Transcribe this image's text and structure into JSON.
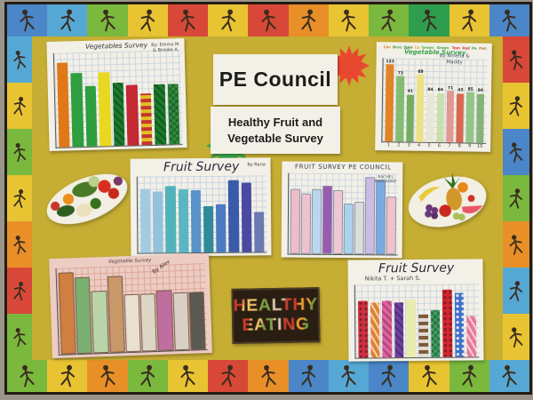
{
  "board": {
    "background_color": "#c6ad33",
    "frame_color": "#241c12",
    "wall_color": "#9a958a",
    "border_theme": "sports-athletes",
    "border_panel_colors": {
      "top": [
        "#4a86c8",
        "#56a8d4",
        "#7ab83e",
        "#e8c432",
        "#d84838",
        "#e8c432",
        "#d84838",
        "#e88f28",
        "#e8c432",
        "#7ab83e",
        "#2e9e4e",
        "#e8c432",
        "#4a86c8"
      ],
      "bottom": [
        "#7ab83e",
        "#e8c432",
        "#e88f28",
        "#7ab83e",
        "#e8c432",
        "#d84838",
        "#e88f28",
        "#4a86c8",
        "#56a8d4",
        "#4a86c8",
        "#e8c432",
        "#7ab83e",
        "#56a8d4"
      ],
      "left": [
        "#56a8d4",
        "#e8c432",
        "#7ab83e",
        "#e8c432",
        "#e88f28",
        "#d84838",
        "#7ab83e"
      ],
      "right": [
        "#d84838",
        "#e8c432",
        "#4a86c8",
        "#7ab83e",
        "#e88f28",
        "#56a8d4",
        "#e8c432"
      ]
    }
  },
  "signs": {
    "main_title": "PE Council",
    "subtitle_line1": "Healthy Fruit and",
    "subtitle_line2": "Vegetable Survey",
    "healthy_line1": "HEALTHY",
    "healthy_line2": "EATING",
    "starburst_red": "#e84830",
    "starburst_green": "#3aa84a"
  },
  "images": {
    "left_cutout": "vegetable-platter-photo",
    "right_cutout": "fruit-platter-photo"
  },
  "chart_data": [
    {
      "id": "vegetables-survey-top-left",
      "type": "bar",
      "title": "Vegetables Survey",
      "author": "By: Emma M. & Brooke A.",
      "ylim": [
        0,
        10
      ],
      "values": [
        9,
        8,
        7,
        8,
        7,
        7,
        6,
        7,
        7
      ],
      "heights": [
        0.92,
        0.8,
        0.66,
        0.8,
        0.68,
        0.66,
        0.56,
        0.66,
        0.66
      ],
      "colors": [
        "#e07818",
        "#2f9e3f",
        "#2f9e3f",
        "#e8d820",
        "#1c7a2c",
        "#c42832",
        "#e0c020",
        "#1c7a2c",
        "#2f8e3e"
      ],
      "patterns": [
        "solid",
        "solid",
        "solid",
        "solid",
        "hatch",
        "solid",
        "check-red",
        "hatch",
        "cross"
      ]
    },
    {
      "id": "vegetable-survey-top-right",
      "type": "bar",
      "title": "Vegetable Survey",
      "title_color": "#3aa04a",
      "author": "By Amelia & Maddy",
      "ylim": [
        0,
        130
      ],
      "values": [
        123,
        73,
        41,
        88,
        84,
        84,
        71,
        43,
        85,
        84
      ],
      "value_labels": [
        "123",
        "73",
        "41",
        "88",
        "84",
        "84",
        "71",
        "43",
        "85",
        "84"
      ],
      "x_labels": [
        "1",
        "2",
        "3",
        "4",
        "5",
        "6",
        "7",
        "8",
        "9",
        "10"
      ],
      "legend": [
        "Carrot",
        "Broccoli",
        "Spinach",
        "Corn",
        "Green Bean",
        "Green Bean",
        "Tomato",
        "Radish",
        "Peas",
        "Potato"
      ],
      "legend_colors": [
        "#d87820",
        "#3a9e3a",
        "#217a21",
        "#d8b418",
        "#4aa84a",
        "#3a9e3a",
        "#d83028",
        "#c23848",
        "#3aa84a",
        "#a87838"
      ],
      "heights": [
        0.95,
        0.8,
        0.58,
        0.82,
        0.6,
        0.6,
        0.63,
        0.6,
        0.62,
        0.6
      ],
      "colors": [
        "#e08428",
        "#84bc74",
        "#74ac64",
        "#ece284",
        "#e8e6d8",
        "#cadfac",
        "#e09890",
        "#d86850",
        "#94c488",
        "#84b478"
      ],
      "patterns": [
        "solid",
        "solid",
        "solid",
        "solid",
        "solid",
        "solid",
        "solid",
        "solid",
        "solid",
        "solid"
      ]
    },
    {
      "id": "fruit-survey-rena",
      "type": "bar",
      "title": "Fruit Survey",
      "author": "By Rena",
      "ylim": [
        0,
        10
      ],
      "values": [
        8.5,
        8,
        9,
        8.5,
        8,
        6,
        6.5,
        9.5,
        9,
        5.5
      ],
      "heights": [
        0.86,
        0.83,
        0.9,
        0.85,
        0.84,
        0.62,
        0.65,
        0.97,
        0.93,
        0.54
      ],
      "colors": [
        "#a2cbe2",
        "#92c2dc",
        "#52b2ba",
        "#5ab6c2",
        "#5a92ca",
        "#2f8a9a",
        "#4a7ac2",
        "#3a5aaa",
        "#4a4aa2",
        "#6a7ab2"
      ],
      "patterns": [
        "solid",
        "solid",
        "solid",
        "solid",
        "solid",
        "solid",
        "solid",
        "solid",
        "solid",
        "solid"
      ],
      "grid_color": "#c7d5e2"
    },
    {
      "id": "fruit-survey-pe-council",
      "type": "bar",
      "title": "FRUIT SURVEY PE COUNCIL",
      "author": "RACHEL MARIANNE",
      "ylim": [
        0,
        10
      ],
      "values": [
        8,
        7.5,
        8,
        8.5,
        8,
        6,
        6.5,
        9.5,
        9,
        7
      ],
      "heights": [
        0.8,
        0.74,
        0.8,
        0.84,
        0.78,
        0.62,
        0.64,
        0.95,
        0.92,
        0.7
      ],
      "colors": [
        "#f0bcca",
        "#eec2ce",
        "#bcd6ee",
        "#9a5ab2",
        "#f0c6d2",
        "#aad2ea",
        "#dcdcdc",
        "#cabce2",
        "#7aaae2",
        "#f0c2ce"
      ],
      "patterns": [
        "solid",
        "solid",
        "solid",
        "solid",
        "solid",
        "solid",
        "solid",
        "solid",
        "solid",
        "solid"
      ],
      "bar_border": "#8a94a4",
      "grid_color": "#cfd8e0"
    },
    {
      "id": "vegetable-survey-alex",
      "type": "bar",
      "title": "Vegetable Survey",
      "author": "By Alex",
      "ylim": [
        0,
        10
      ],
      "values": [
        9.5,
        9,
        7,
        9,
        6.5,
        6.5,
        7,
        6.5,
        6.5
      ],
      "heights": [
        0.95,
        0.88,
        0.72,
        0.88,
        0.66,
        0.66,
        0.7,
        0.66,
        0.66
      ],
      "colors": [
        "#cf7f3f",
        "#7ab070",
        "#b8d4a8",
        "#c89868",
        "#e8e0d0",
        "#ddd6c5",
        "#bf6f9f",
        "#d8d0c6",
        "#5a5a52"
      ],
      "patterns": [
        "solid",
        "solid",
        "solid",
        "solid",
        "solid",
        "solid",
        "solid",
        "solid",
        "solid"
      ],
      "paper_color": "#edccc3",
      "grid_color": "#dba79b",
      "bar_border": "#7a5a4a"
    },
    {
      "id": "fruit-survey-bottom-right",
      "type": "bar",
      "title": "Fruit Survey",
      "author": "Nikita T. + Sarah S.",
      "ylim": [
        0,
        10
      ],
      "values": [
        8,
        8,
        8,
        8,
        8,
        6,
        6.5,
        9.5,
        9,
        6
      ],
      "heights": [
        0.8,
        0.78,
        0.8,
        0.78,
        0.82,
        0.62,
        0.66,
        0.95,
        0.9,
        0.58
      ],
      "colors": [
        "#cc3040",
        "#e08030",
        "#e060a0",
        "#7040a0",
        "#e8ecb0",
        "#7a5a38",
        "#40a060",
        "#d02830",
        "#4070c8",
        "#e87898"
      ],
      "patterns": [
        "dots",
        "stripes",
        "hatch",
        "hatch",
        "solid",
        "check",
        "cross",
        "dots",
        "dots-light",
        "stripes"
      ]
    }
  ]
}
